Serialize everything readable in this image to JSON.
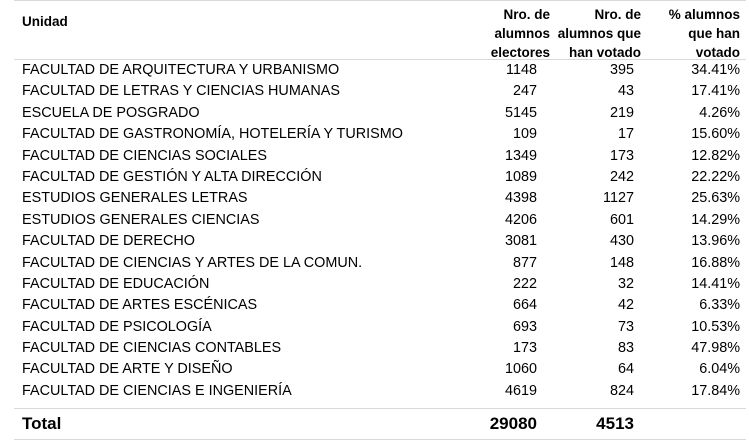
{
  "header": {
    "unit": "Unidad",
    "electors": "Nro. de\nalumnos\nelectores",
    "voted": "Nro. de\nalumnos  que\nhan votado",
    "percent": "% alumnos\nque han\nvotado"
  },
  "rows": [
    {
      "name": "FACULTAD DE ARQUITECTURA Y URBANISMO",
      "electors": "1148",
      "voted": "395",
      "percent": "34.41%"
    },
    {
      "name": "FACULTAD DE LETRAS Y CIENCIAS HUMANAS",
      "electors": "247",
      "voted": "43",
      "percent": "17.41%"
    },
    {
      "name": "ESCUELA DE POSGRADO",
      "electors": "5145",
      "voted": "219",
      "percent": "4.26%"
    },
    {
      "name": "FACULTAD DE GASTRONOMÍA, HOTELERÍA Y TURISMO",
      "electors": "109",
      "voted": "17",
      "percent": "15.60%"
    },
    {
      "name": "FACULTAD DE CIENCIAS SOCIALES",
      "electors": "1349",
      "voted": "173",
      "percent": "12.82%"
    },
    {
      "name": "FACULTAD DE GESTIÓN Y ALTA DIRECCIÓN",
      "electors": "1089",
      "voted": "242",
      "percent": "22.22%"
    },
    {
      "name": "ESTUDIOS GENERALES LETRAS",
      "electors": "4398",
      "voted": "1127",
      "percent": "25.63%"
    },
    {
      "name": "ESTUDIOS GENERALES CIENCIAS",
      "electors": "4206",
      "voted": "601",
      "percent": "14.29%"
    },
    {
      "name": "FACULTAD DE DERECHO",
      "electors": "3081",
      "voted": "430",
      "percent": "13.96%"
    },
    {
      "name": "FACULTAD DE CIENCIAS Y ARTES DE LA COMUN.",
      "electors": "877",
      "voted": "148",
      "percent": "16.88%"
    },
    {
      "name": "FACULTAD DE EDUCACIÓN",
      "electors": "222",
      "voted": "32",
      "percent": "14.41%"
    },
    {
      "name": "FACULTAD DE ARTES ESCÉNICAS",
      "electors": "664",
      "voted": "42",
      "percent": "6.33%"
    },
    {
      "name": "FACULTAD DE PSICOLOGÍA",
      "electors": "693",
      "voted": "73",
      "percent": "10.53%"
    },
    {
      "name": "FACULTAD DE CIENCIAS CONTABLES",
      "electors": "173",
      "voted": "83",
      "percent": "47.98%"
    },
    {
      "name": "FACULTAD DE ARTE Y DISEÑO",
      "electors": "1060",
      "voted": "64",
      "percent": "6.04%"
    },
    {
      "name": "FACULTAD DE CIENCIAS E INGENIERÍA",
      "electors": "4619",
      "voted": "824",
      "percent": "17.84%"
    }
  ],
  "total": {
    "label": "Total",
    "electors": "29080",
    "voted": "4513"
  }
}
